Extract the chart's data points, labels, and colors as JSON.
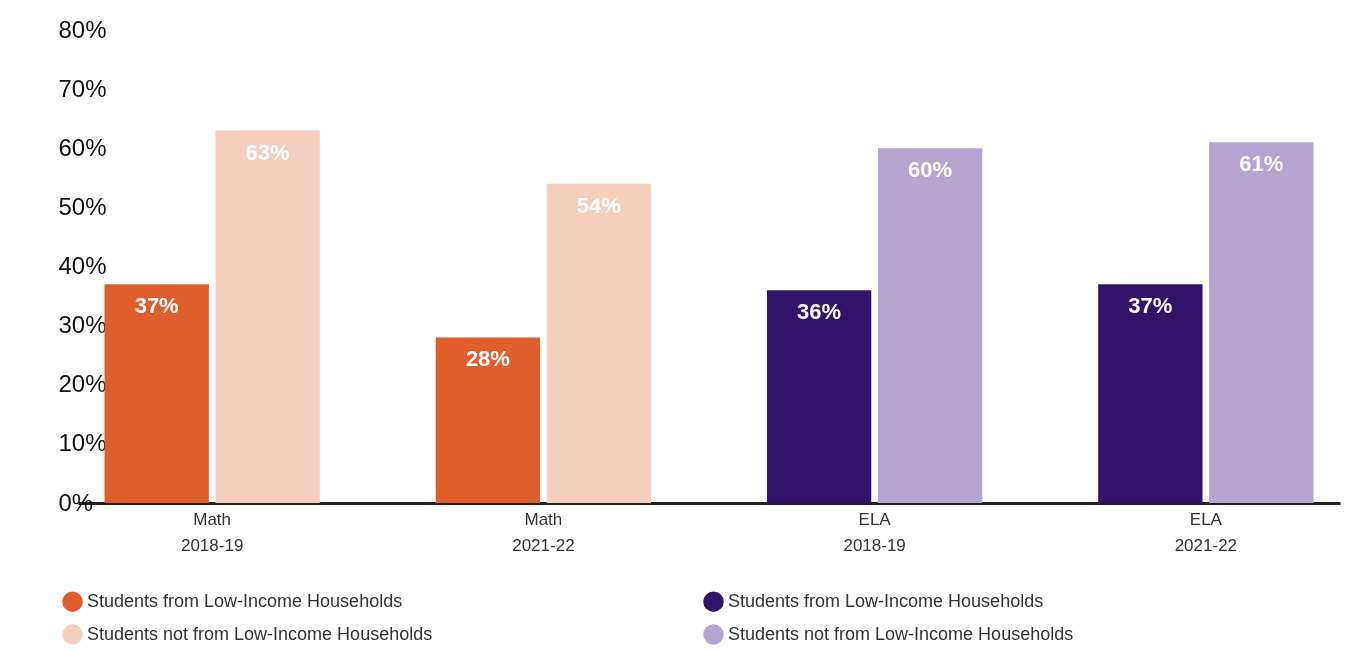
{
  "chart_data": {
    "type": "bar",
    "categories": [
      "Math\n2018-19",
      "Math\n2021-22",
      "ELA\n2018-19",
      "ELA\n2021-22"
    ],
    "series": [
      {
        "name": "Students from Low-Income Households",
        "color": "#e05e2b",
        "values": [
          37,
          28,
          null,
          null
        ],
        "value_labels": [
          "37%",
          "28%",
          null,
          null
        ]
      },
      {
        "name": "Students not from Low-Income Households",
        "color": "#f5cfbe",
        "values": [
          63,
          54,
          null,
          null
        ],
        "value_labels": [
          "63%",
          "54%",
          null,
          null
        ]
      },
      {
        "name": "Students from Low-Income Households",
        "color": "#2f1469",
        "values": [
          null,
          null,
          36,
          37
        ],
        "value_labels": [
          null,
          null,
          "36%",
          "37%"
        ]
      },
      {
        "name": "Students not from Low-Income Households",
        "color": "#b4a4cf",
        "values": [
          null,
          null,
          60,
          61
        ],
        "value_labels": [
          null,
          null,
          "60%",
          "61%"
        ]
      }
    ],
    "ylim": [
      0,
      80
    ],
    "yticks": [
      {
        "value": 0,
        "label": "0%"
      },
      {
        "value": 10,
        "label": "10%"
      },
      {
        "value": 20,
        "label": "20%"
      },
      {
        "value": 30,
        "label": "30%"
      },
      {
        "value": 40,
        "label": "40%"
      },
      {
        "value": 50,
        "label": "50%"
      },
      {
        "value": 60,
        "label": "60%"
      },
      {
        "value": 70,
        "label": "70%"
      },
      {
        "value": 80,
        "label": "80%"
      }
    ],
    "legend": "bottom"
  }
}
